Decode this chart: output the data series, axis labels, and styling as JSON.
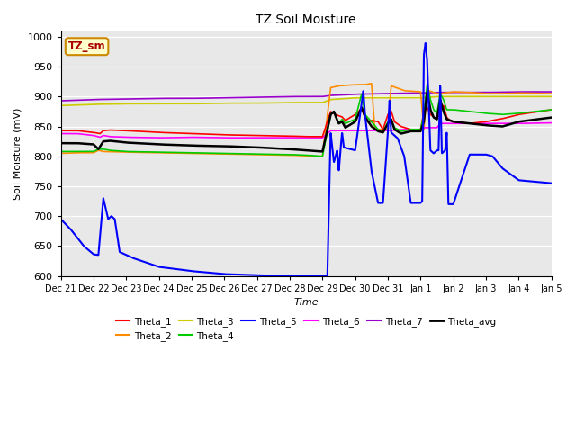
{
  "title": "TZ Soil Moisture",
  "xlabel": "Time",
  "ylabel": "Soil Moisture (mV)",
  "ylim": [
    600,
    1010
  ],
  "yticks": [
    600,
    650,
    700,
    750,
    800,
    850,
    900,
    950,
    1000
  ],
  "legend_label": "TZ_sm",
  "bg_color": "#e8e8e8",
  "series": {
    "Theta_1": {
      "color": "#ff0000",
      "lw": 1.2
    },
    "Theta_2": {
      "color": "#ff8c00",
      "lw": 1.2
    },
    "Theta_3": {
      "color": "#cccc00",
      "lw": 1.2
    },
    "Theta_4": {
      "color": "#00cc00",
      "lw": 1.2
    },
    "Theta_5": {
      "color": "#0000ff",
      "lw": 1.5
    },
    "Theta_6": {
      "color": "#ff00ff",
      "lw": 1.2
    },
    "Theta_7": {
      "color": "#9900cc",
      "lw": 1.2
    },
    "Theta_avg": {
      "color": "#000000",
      "lw": 1.8
    }
  },
  "tick_labels": [
    "Dec 21",
    "Dec 22",
    "Dec 23",
    "Dec 24",
    "Dec 25",
    "Dec 26",
    "Dec 27",
    "Dec 28",
    "Dec 29",
    "Dec 30",
    "Dec 31",
    "Jan 1",
    "Jan 2",
    "Jan 3",
    "Jan 4",
    "Jan 5"
  ]
}
